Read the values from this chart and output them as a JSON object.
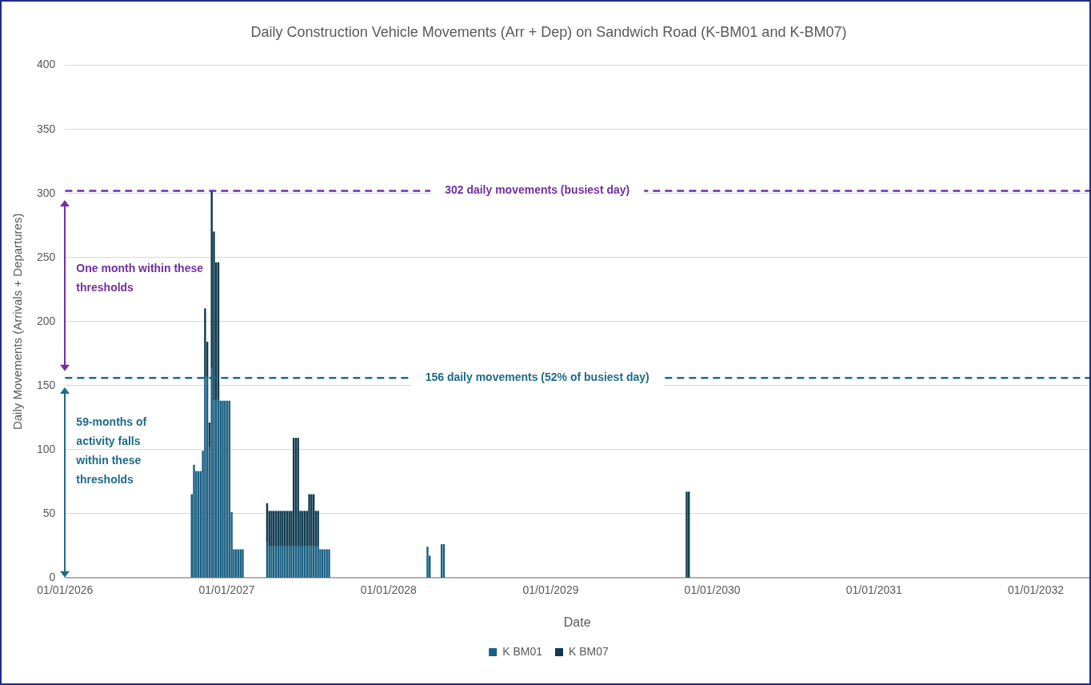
{
  "chart_data": {
    "type": "bar",
    "stacked": true,
    "title": "Daily Construction Vehicle Movements (Arr + Dep) on Sandwich Road (K-BM01 and K-BM07)",
    "xlabel": "Date",
    "ylabel": "Daily Movements (Arrivals + Departures)",
    "x": [
      "2026-10-14",
      "2026-10-19",
      "2026-10-24",
      "2026-10-29",
      "2026-11-03",
      "2026-11-08",
      "2026-11-13",
      "2026-11-18",
      "2026-11-23",
      "2026-11-28",
      "2026-12-03",
      "2026-12-08",
      "2026-12-13",
      "2026-12-18",
      "2026-12-23",
      "2026-12-28",
      "2027-01-02",
      "2027-01-07",
      "2027-01-12",
      "2027-01-17",
      "2027-01-22",
      "2027-01-27",
      "2027-02-01",
      "2027-02-06",
      "2027-04-02",
      "2027-04-07",
      "2027-04-12",
      "2027-04-17",
      "2027-04-22",
      "2027-04-27",
      "2027-05-02",
      "2027-05-07",
      "2027-05-12",
      "2027-05-17",
      "2027-05-22",
      "2027-05-27",
      "2027-06-01",
      "2027-06-06",
      "2027-06-11",
      "2027-06-16",
      "2027-06-21",
      "2027-06-26",
      "2027-07-01",
      "2027-07-06",
      "2027-07-11",
      "2027-07-16",
      "2027-07-21",
      "2027-07-26",
      "2027-07-31",
      "2027-08-05",
      "2027-08-10",
      "2027-08-15",
      "2027-08-20",
      "2028-03-29",
      "2028-04-03",
      "2028-04-30",
      "2028-05-05",
      "2029-11-04",
      "2029-11-09"
    ],
    "series": [
      {
        "name": "K BM01",
        "color": "#1a6082",
        "values": [
          65,
          88,
          83,
          83,
          83,
          99,
          157,
          157,
          102,
          164,
          139,
          139,
          139,
          138,
          138,
          138,
          138,
          138,
          51,
          22,
          22,
          22,
          22,
          22,
          28,
          25,
          25,
          25,
          25,
          25,
          25,
          25,
          25,
          25,
          25,
          25,
          25,
          25,
          25,
          25,
          25,
          25,
          25,
          25,
          25,
          25,
          25,
          25,
          22,
          22,
          22,
          22,
          22,
          24,
          17,
          26,
          26,
          null,
          null
        ]
      },
      {
        "name": "K BM07",
        "color": "#0e3a4f",
        "values": [
          null,
          null,
          null,
          null,
          null,
          null,
          53,
          27,
          19,
          138,
          131,
          107,
          107,
          null,
          null,
          null,
          null,
          null,
          null,
          null,
          null,
          null,
          null,
          null,
          30,
          27,
          27,
          27,
          27,
          27,
          27,
          27,
          27,
          27,
          27,
          27,
          84,
          84,
          84,
          27,
          27,
          27,
          27,
          40,
          40,
          40,
          27,
          27,
          null,
          null,
          null,
          null,
          null,
          null,
          null,
          null,
          null,
          67,
          67
        ]
      }
    ],
    "xlim": [
      "2026-01-01",
      "2032-05-01"
    ],
    "xticks": [
      {
        "value": "2026-01-01",
        "label": "01/01/2026"
      },
      {
        "value": "2027-01-01",
        "label": "01/01/2027"
      },
      {
        "value": "2028-01-01",
        "label": "01/01/2028"
      },
      {
        "value": "2029-01-01",
        "label": "01/01/2029"
      },
      {
        "value": "2030-01-01",
        "label": "01/01/2030"
      },
      {
        "value": "2031-01-01",
        "label": "01/01/2031"
      },
      {
        "value": "2032-01-01",
        "label": "01/01/2032"
      }
    ],
    "ylim": [
      0,
      400
    ],
    "yticks": [
      0,
      50,
      100,
      150,
      200,
      250,
      300,
      350,
      400
    ],
    "ref_lines": [
      {
        "axis": "y",
        "value": 302,
        "label": "302 daily movements (busiest day)",
        "color": "#7030a0",
        "line_style": "dashed"
      },
      {
        "axis": "y",
        "value": 156,
        "label": "156 daily movements (52% of busiest day)",
        "color": "#1f6b8a",
        "line_style": "dashed"
      }
    ],
    "annotations": [
      "One month within these thresholds",
      "59-months of activity falls within these thresholds"
    ],
    "grid": "y",
    "legend": "bottom"
  }
}
